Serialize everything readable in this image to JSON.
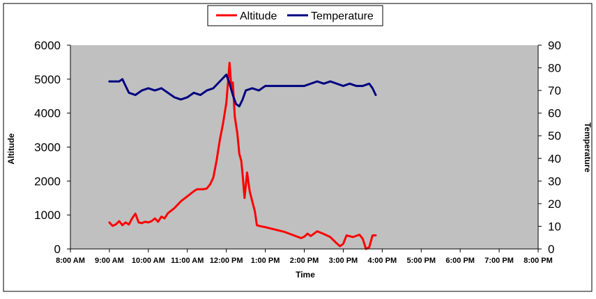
{
  "chart_data": {
    "type": "line",
    "title": "",
    "xlabel": "Time",
    "ylabel_left": "Altitude",
    "ylabel_right": "Temperature",
    "x_axis": {
      "min_hours": 8,
      "max_hours": 20,
      "tick_labels": [
        "8:00 AM",
        "9:00 AM",
        "10:00 AM",
        "11:00 AM",
        "12:00 PM",
        "1:00 PM",
        "2:00 PM",
        "3:00 PM",
        "4:00 PM",
        "5:00 PM",
        "6:00 PM",
        "7:00 PM",
        "8:00 PM"
      ]
    },
    "y_left": {
      "min": 0,
      "max": 6000,
      "tick_labels": [
        "0",
        "1000",
        "2000",
        "3000",
        "4000",
        "5000",
        "6000"
      ]
    },
    "y_right": {
      "min": 0,
      "max": 90,
      "tick_labels": [
        "0",
        "10",
        "20",
        "30",
        "40",
        "50",
        "60",
        "70",
        "80",
        "90"
      ]
    },
    "legend": {
      "placement": "top-center",
      "entries": [
        "Altitude",
        "Temperature"
      ]
    },
    "plot_background": "#c0c0c0",
    "series": [
      {
        "name": "Altitude",
        "axis": "left",
        "color": "#ff0000",
        "points": [
          [
            "9:00 AM",
            780
          ],
          [
            "9:05 AM",
            680
          ],
          [
            "9:10 AM",
            720
          ],
          [
            "9:15 AM",
            820
          ],
          [
            "9:20 AM",
            700
          ],
          [
            "9:25 AM",
            780
          ],
          [
            "9:30 AM",
            720
          ],
          [
            "9:35 AM",
            900
          ],
          [
            "9:40 AM",
            1040
          ],
          [
            "9:45 AM",
            780
          ],
          [
            "9:50 AM",
            760
          ],
          [
            "9:55 AM",
            800
          ],
          [
            "10:00 AM",
            780
          ],
          [
            "10:05 AM",
            820
          ],
          [
            "10:10 AM",
            900
          ],
          [
            "10:15 AM",
            800
          ],
          [
            "10:20 AM",
            950
          ],
          [
            "10:25 AM",
            900
          ],
          [
            "10:30 AM",
            1050
          ],
          [
            "10:40 AM",
            1200
          ],
          [
            "10:50 AM",
            1400
          ],
          [
            "11:00 AM",
            1550
          ],
          [
            "11:10 AM",
            1700
          ],
          [
            "11:15 AM",
            1760
          ],
          [
            "11:25 AM",
            1760
          ],
          [
            "11:30 AM",
            1780
          ],
          [
            "11:35 AM",
            1900
          ],
          [
            "11:40 AM",
            2100
          ],
          [
            "11:45 AM",
            2600
          ],
          [
            "11:50 AM",
            3200
          ],
          [
            "11:55 AM",
            3700
          ],
          [
            "12:00 PM",
            4300
          ],
          [
            "12:05 PM",
            5480
          ],
          [
            "12:08 PM",
            4700
          ],
          [
            "12:10 PM",
            4900
          ],
          [
            "12:13 PM",
            3900
          ],
          [
            "12:17 PM",
            3400
          ],
          [
            "12:20 PM",
            2800
          ],
          [
            "12:23 PM",
            2600
          ],
          [
            "12:25 PM",
            2200
          ],
          [
            "12:28 PM",
            1500
          ],
          [
            "12:32 PM",
            2250
          ],
          [
            "12:36 PM",
            1700
          ],
          [
            "12:40 PM",
            1400
          ],
          [
            "12:44 PM",
            1100
          ],
          [
            "12:47 PM",
            700
          ],
          [
            "12:50 PM",
            680
          ],
          [
            "1:00 PM",
            640
          ],
          [
            "1:30 PM",
            500
          ],
          [
            "1:55 PM",
            320
          ],
          [
            "2:00 PM",
            360
          ],
          [
            "2:05 PM",
            450
          ],
          [
            "2:10 PM",
            380
          ],
          [
            "2:20 PM",
            520
          ],
          [
            "2:30 PM",
            440
          ],
          [
            "2:40 PM",
            350
          ],
          [
            "2:48 PM",
            200
          ],
          [
            "2:55 PM",
            80
          ],
          [
            "3:00 PM",
            150
          ],
          [
            "3:05 PM",
            400
          ],
          [
            "3:15 PM",
            350
          ],
          [
            "3:25 PM",
            420
          ],
          [
            "3:30 PM",
            300
          ],
          [
            "3:35 PM",
            0
          ],
          [
            "3:40 PM",
            50
          ],
          [
            "3:45 PM",
            400
          ],
          [
            "3:50 PM",
            400
          ]
        ]
      },
      {
        "name": "Temperature",
        "axis": "right",
        "color": "#000080",
        "points": [
          [
            "9:00 AM",
            74
          ],
          [
            "9:15 AM",
            74
          ],
          [
            "9:20 AM",
            75
          ],
          [
            "9:25 AM",
            72
          ],
          [
            "9:30 AM",
            69
          ],
          [
            "9:40 AM",
            68
          ],
          [
            "9:50 AM",
            70
          ],
          [
            "10:00 AM",
            71
          ],
          [
            "10:10 AM",
            70
          ],
          [
            "10:20 AM",
            71
          ],
          [
            "10:30 AM",
            69
          ],
          [
            "10:40 AM",
            67
          ],
          [
            "10:50 AM",
            66
          ],
          [
            "11:00 AM",
            67
          ],
          [
            "11:10 AM",
            69
          ],
          [
            "11:20 AM",
            68
          ],
          [
            "11:30 AM",
            70
          ],
          [
            "11:40 AM",
            71
          ],
          [
            "11:50 AM",
            74
          ],
          [
            "12:00 PM",
            77
          ],
          [
            "12:05 PM",
            73
          ],
          [
            "12:10 PM",
            68
          ],
          [
            "12:15 PM",
            64
          ],
          [
            "12:20 PM",
            63
          ],
          [
            "12:25 PM",
            66
          ],
          [
            "12:30 PM",
            70
          ],
          [
            "12:40 PM",
            71
          ],
          [
            "12:50 PM",
            70
          ],
          [
            "1:00 PM",
            72
          ],
          [
            "1:30 PM",
            72
          ],
          [
            "2:00 PM",
            72
          ],
          [
            "2:10 PM",
            73
          ],
          [
            "2:20 PM",
            74
          ],
          [
            "2:30 PM",
            73
          ],
          [
            "2:40 PM",
            74
          ],
          [
            "2:50 PM",
            73
          ],
          [
            "3:00 PM",
            72
          ],
          [
            "3:10 PM",
            73
          ],
          [
            "3:20 PM",
            72
          ],
          [
            "3:30 PM",
            72
          ],
          [
            "3:40 PM",
            73
          ],
          [
            "3:45 PM",
            71
          ],
          [
            "3:50 PM",
            68
          ]
        ]
      }
    ]
  }
}
